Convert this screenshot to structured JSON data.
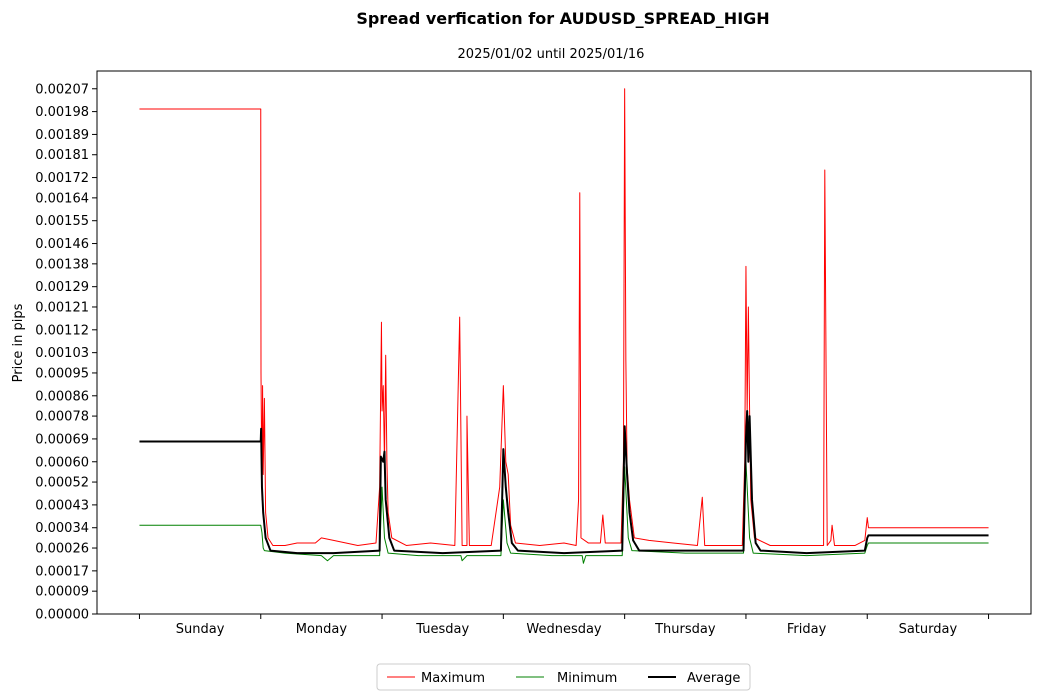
{
  "chart_data": {
    "type": "line",
    "title": "Spread verfication for AUDUSD_SPREAD_HIGH",
    "subtitle": "2025/01/02 until 2025/01/16",
    "xlabel": "",
    "ylabel": "Price in pips",
    "ylim": [
      0,
      0.00214
    ],
    "grid": false,
    "legend_position": "bottom-center",
    "y_ticks": [
      0.0,
      9e-05,
      0.00017,
      0.00026,
      0.00034,
      0.00043,
      0.00052,
      0.0006,
      0.00069,
      0.00078,
      0.00086,
      0.00095,
      0.00103,
      0.00112,
      0.00121,
      0.00129,
      0.00138,
      0.00146,
      0.00155,
      0.00164,
      0.00172,
      0.00181,
      0.00189,
      0.00198,
      0.00207
    ],
    "y_tick_labels": [
      "0.00000",
      "0.00009",
      "0.00017",
      "0.00026",
      "0.00034",
      "0.00043",
      "0.00052",
      "0.00060",
      "0.00069",
      "0.00078",
      "0.00086",
      "0.00095",
      "0.00103",
      "0.00112",
      "0.00121",
      "0.00129",
      "0.00138",
      "0.00146",
      "0.00155",
      "0.00164",
      "0.00172",
      "0.00181",
      "0.00189",
      "0.00198",
      "0.00207"
    ],
    "x_range": [
      -0.35,
      7.35
    ],
    "x_major_ticks": [
      0,
      1,
      2,
      3,
      4,
      5,
      6,
      7
    ],
    "categories": [
      "Sunday",
      "Monday",
      "Tuesday",
      "Wednesday",
      "Thursday",
      "Friday",
      "Saturday"
    ],
    "category_positions": [
      0.5,
      1.5,
      2.5,
      3.5,
      4.5,
      5.5,
      6.5
    ],
    "series": [
      {
        "name": "Maximum",
        "color": "#ff0000",
        "linewidth": 1,
        "points": [
          [
            0,
            0.00199
          ],
          [
            1,
            0.00199
          ],
          [
            1.002,
            0.00095
          ],
          [
            1.01,
            0.00045
          ],
          [
            1.015,
            0.0009
          ],
          [
            1.02,
            0.00055
          ],
          [
            1.03,
            0.00085
          ],
          [
            1.04,
            0.0004
          ],
          [
            1.06,
            0.0003
          ],
          [
            1.1,
            0.00027
          ],
          [
            1.2,
            0.00027
          ],
          [
            1.3,
            0.00028
          ],
          [
            1.45,
            0.00028
          ],
          [
            1.5,
            0.0003
          ],
          [
            1.6,
            0.00029
          ],
          [
            1.8,
            0.00027
          ],
          [
            1.95,
            0.00028
          ],
          [
            1.98,
            0.0005
          ],
          [
            1.995,
            0.00115
          ],
          [
            2.0,
            0.0008
          ],
          [
            2.01,
            0.0009
          ],
          [
            2.02,
            0.0006
          ],
          [
            2.03,
            0.00102
          ],
          [
            2.04,
            0.0006
          ],
          [
            2.05,
            0.0004
          ],
          [
            2.08,
            0.0003
          ],
          [
            2.2,
            0.00027
          ],
          [
            2.4,
            0.00028
          ],
          [
            2.6,
            0.00027
          ],
          [
            2.64,
            0.00117
          ],
          [
            2.66,
            0.00027
          ],
          [
            2.7,
            0.00027
          ],
          [
            2.7,
            0.00078
          ],
          [
            2.72,
            0.00027
          ],
          [
            2.9,
            0.00027
          ],
          [
            2.97,
            0.0005
          ],
          [
            3.0,
            0.0009
          ],
          [
            3.02,
            0.0006
          ],
          [
            3.04,
            0.00055
          ],
          [
            3.06,
            0.00035
          ],
          [
            3.1,
            0.00028
          ],
          [
            3.3,
            0.00027
          ],
          [
            3.5,
            0.00028
          ],
          [
            3.6,
            0.00027
          ],
          [
            3.62,
            0.00045
          ],
          [
            3.63,
            0.00166
          ],
          [
            3.64,
            0.0003
          ],
          [
            3.7,
            0.00028
          ],
          [
            3.8,
            0.00028
          ],
          [
            3.82,
            0.00039
          ],
          [
            3.84,
            0.00028
          ],
          [
            3.97,
            0.00028
          ],
          [
            3.99,
            0.0006
          ],
          [
            4.0,
            0.00207
          ],
          [
            4.01,
            0.001
          ],
          [
            4.02,
            0.00058
          ],
          [
            4.04,
            0.00045
          ],
          [
            4.08,
            0.0003
          ],
          [
            4.2,
            0.00029
          ],
          [
            4.4,
            0.00028
          ],
          [
            4.6,
            0.00027
          ],
          [
            4.64,
            0.00046
          ],
          [
            4.66,
            0.00027
          ],
          [
            4.8,
            0.00027
          ],
          [
            4.97,
            0.00027
          ],
          [
            4.99,
            0.0006
          ],
          [
            5.0,
            0.00137
          ],
          [
            5.01,
            0.0008
          ],
          [
            5.02,
            0.00121
          ],
          [
            5.03,
            0.0008
          ],
          [
            5.04,
            0.00045
          ],
          [
            5.07,
            0.0003
          ],
          [
            5.2,
            0.00027
          ],
          [
            5.4,
            0.00027
          ],
          [
            5.64,
            0.00027
          ],
          [
            5.65,
            0.00175
          ],
          [
            5.67,
            0.00027
          ],
          [
            5.7,
            0.00029
          ],
          [
            5.71,
            0.00035
          ],
          [
            5.73,
            0.00027
          ],
          [
            5.9,
            0.00027
          ],
          [
            5.98,
            0.00029
          ],
          [
            6.0,
            0.00038
          ],
          [
            6.01,
            0.00034
          ],
          [
            7.0,
            0.00034
          ]
        ]
      },
      {
        "name": "Minimum",
        "color": "#008000",
        "linewidth": 1,
        "points": [
          [
            0,
            0.00035
          ],
          [
            1,
            0.00035
          ],
          [
            1.01,
            0.00032
          ],
          [
            1.02,
            0.00026
          ],
          [
            1.03,
            0.00025
          ],
          [
            1.2,
            0.00024
          ],
          [
            1.5,
            0.00023
          ],
          [
            1.55,
            0.00021
          ],
          [
            1.6,
            0.00023
          ],
          [
            1.98,
            0.00023
          ],
          [
            2.0,
            0.0005
          ],
          [
            2.02,
            0.0003
          ],
          [
            2.05,
            0.00024
          ],
          [
            2.3,
            0.00023
          ],
          [
            2.65,
            0.00023
          ],
          [
            2.66,
            0.00021
          ],
          [
            2.7,
            0.00023
          ],
          [
            2.98,
            0.00023
          ],
          [
            3.0,
            0.00045
          ],
          [
            3.03,
            0.00028
          ],
          [
            3.06,
            0.00024
          ],
          [
            3.4,
            0.00023
          ],
          [
            3.65,
            0.00023
          ],
          [
            3.66,
            0.0002
          ],
          [
            3.68,
            0.00023
          ],
          [
            3.98,
            0.00023
          ],
          [
            4.0,
            0.00058
          ],
          [
            4.03,
            0.0003
          ],
          [
            4.06,
            0.00025
          ],
          [
            4.5,
            0.00024
          ],
          [
            4.98,
            0.00024
          ],
          [
            5.0,
            0.0006
          ],
          [
            5.03,
            0.0003
          ],
          [
            5.06,
            0.00024
          ],
          [
            5.5,
            0.00023
          ],
          [
            5.98,
            0.00024
          ],
          [
            6.0,
            0.00027
          ],
          [
            6.01,
            0.00028
          ],
          [
            7.0,
            0.00028
          ]
        ]
      },
      {
        "name": "Average",
        "color": "#000000",
        "linewidth": 2,
        "points": [
          [
            0,
            0.00068
          ],
          [
            1,
            0.00068
          ],
          [
            1.003,
            0.00073
          ],
          [
            1.01,
            0.0005
          ],
          [
            1.02,
            0.0004
          ],
          [
            1.04,
            0.0003
          ],
          [
            1.08,
            0.00025
          ],
          [
            1.3,
            0.00024
          ],
          [
            1.6,
            0.00024
          ],
          [
            1.98,
            0.00025
          ],
          [
            1.99,
            0.00062
          ],
          [
            2.01,
            0.0006
          ],
          [
            2.02,
            0.00064
          ],
          [
            2.03,
            0.00045
          ],
          [
            2.06,
            0.0003
          ],
          [
            2.1,
            0.00025
          ],
          [
            2.5,
            0.00024
          ],
          [
            2.98,
            0.00025
          ],
          [
            3.0,
            0.00065
          ],
          [
            3.02,
            0.0005
          ],
          [
            3.04,
            0.0004
          ],
          [
            3.07,
            0.00028
          ],
          [
            3.12,
            0.00025
          ],
          [
            3.5,
            0.00024
          ],
          [
            3.98,
            0.00025
          ],
          [
            4.0,
            0.00074
          ],
          [
            4.02,
            0.00055
          ],
          [
            4.04,
            0.0004
          ],
          [
            4.07,
            0.00029
          ],
          [
            4.12,
            0.00025
          ],
          [
            4.5,
            0.00025
          ],
          [
            4.98,
            0.00025
          ],
          [
            5.0,
            0.00069
          ],
          [
            5.01,
            0.0008
          ],
          [
            5.02,
            0.0006
          ],
          [
            5.03,
            0.00078
          ],
          [
            5.05,
            0.00045
          ],
          [
            5.08,
            0.00028
          ],
          [
            5.12,
            0.00025
          ],
          [
            5.5,
            0.00024
          ],
          [
            5.98,
            0.00025
          ],
          [
            6.0,
            0.0003
          ],
          [
            6.01,
            0.00031
          ],
          [
            7.0,
            0.00031
          ]
        ]
      }
    ]
  }
}
